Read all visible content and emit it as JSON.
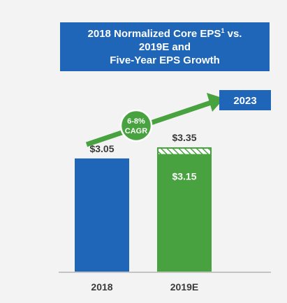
{
  "title": {
    "line1": "2018 Normalized Core EPS",
    "footnote_marker": "1",
    "line1_suffix": " vs.",
    "line2": "2019E and",
    "line3": "Five-Year EPS Growth"
  },
  "colors": {
    "blue": "#1f66b8",
    "green": "#48a23f",
    "axis": "#b5b5b5",
    "text": "#3a3a3a",
    "background": "#f3f3f3"
  },
  "chart_data": {
    "type": "bar",
    "categories": [
      "2018",
      "2019E"
    ],
    "ylim": [
      0,
      3.35
    ],
    "bars": [
      {
        "category": "2018",
        "value": 3.05,
        "label": "$3.05",
        "color": "#1f66b8"
      },
      {
        "category": "2019E",
        "value": 3.15,
        "upper": 3.35,
        "label_inside": "$3.15",
        "label_top": "$3.35",
        "color": "#48a23f",
        "range_pattern": "hatched"
      }
    ],
    "annotations": {
      "cagr_text_1": "6-8%",
      "cagr_text_2": "CAGR",
      "target_year": "2023"
    },
    "xlabel": "",
    "ylabel": "",
    "grid": false,
    "legend": "none"
  }
}
